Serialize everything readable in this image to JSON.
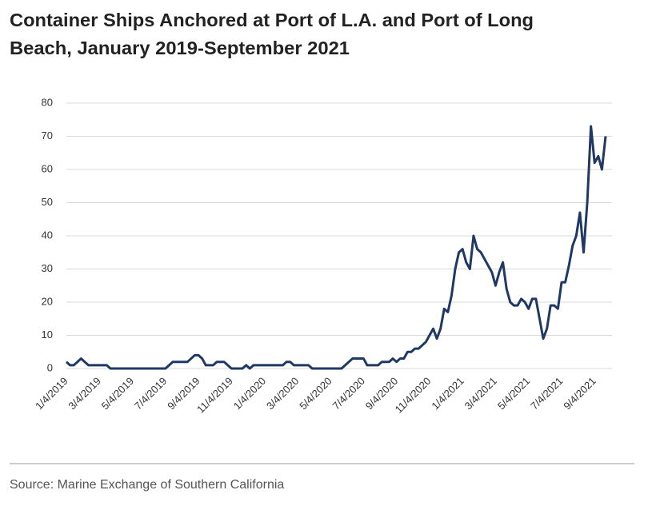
{
  "chart_data": {
    "type": "line",
    "title_lines": [
      "Container Ships Anchored at Port of L.A. and Port of Long",
      "Beach, January 2019-September 2021"
    ],
    "source": "Source: Marine Exchange of Southern California",
    "categories": [
      "1/4/2019",
      null,
      null,
      null,
      null,
      null,
      null,
      null,
      null,
      "3/4/2019",
      null,
      null,
      null,
      null,
      null,
      null,
      null,
      null,
      "5/4/2019",
      null,
      null,
      null,
      null,
      null,
      null,
      null,
      null,
      "7/4/2019",
      null,
      null,
      null,
      null,
      null,
      null,
      null,
      null,
      "9/4/2019",
      null,
      null,
      null,
      null,
      null,
      null,
      null,
      null,
      "11/4/2019",
      null,
      null,
      null,
      null,
      null,
      null,
      null,
      null,
      "1/4/2020",
      null,
      null,
      null,
      null,
      null,
      null,
      null,
      null,
      "3/4/2020",
      null,
      null,
      null,
      null,
      null,
      null,
      null,
      null,
      "5/4/2020",
      null,
      null,
      null,
      null,
      null,
      null,
      null,
      null,
      "7/4/2020",
      null,
      null,
      null,
      null,
      null,
      null,
      null,
      null,
      "9/4/2020",
      null,
      null,
      null,
      null,
      null,
      null,
      null,
      null,
      "11/4/2020",
      null,
      null,
      null,
      null,
      null,
      null,
      null,
      null,
      "1/4/2021",
      null,
      null,
      null,
      null,
      null,
      null,
      null,
      null,
      "3/4/2021",
      null,
      null,
      null,
      null,
      null,
      null,
      null,
      null,
      "5/4/2021",
      null,
      null,
      null,
      null,
      null,
      null,
      null,
      null,
      "7/4/2021",
      null,
      null,
      null,
      null,
      null,
      null,
      null,
      null,
      "9/4/2021",
      null,
      null,
      null
    ],
    "series": [
      {
        "name": "Container ships anchored",
        "color": "#1f3864",
        "values": [
          2,
          1,
          1,
          2,
          3,
          2,
          1,
          1,
          1,
          1,
          1,
          1,
          0,
          0,
          0,
          0,
          0,
          0,
          0,
          0,
          0,
          0,
          0,
          0,
          0,
          0,
          0,
          0,
          1,
          2,
          2,
          2,
          2,
          2,
          3,
          4,
          4,
          3,
          1,
          1,
          1,
          2,
          2,
          2,
          1,
          0,
          0,
          0,
          0,
          1,
          0,
          1,
          1,
          1,
          1,
          1,
          1,
          1,
          1,
          1,
          2,
          2,
          1,
          1,
          1,
          1,
          1,
          0,
          0,
          0,
          0,
          0,
          0,
          0,
          0,
          0,
          1,
          2,
          3,
          3,
          3,
          3,
          1,
          1,
          1,
          1,
          2,
          2,
          2,
          3,
          2,
          3,
          3,
          5,
          5,
          6,
          6,
          7,
          8,
          10,
          12,
          9,
          12,
          18,
          17,
          22,
          30,
          35,
          36,
          32,
          30,
          40,
          36,
          35,
          33,
          31,
          29,
          25,
          29,
          32,
          24,
          20,
          19,
          19,
          21,
          20,
          18,
          21,
          21,
          15,
          9,
          12,
          19,
          19,
          18,
          26,
          26,
          31,
          37,
          40,
          47,
          35,
          50,
          73,
          62,
          64,
          60,
          70
        ]
      }
    ],
    "ylim": [
      0,
      80
    ],
    "yticks": [
      0,
      10,
      20,
      30,
      40,
      50,
      60,
      70,
      80
    ],
    "grid": true
  }
}
